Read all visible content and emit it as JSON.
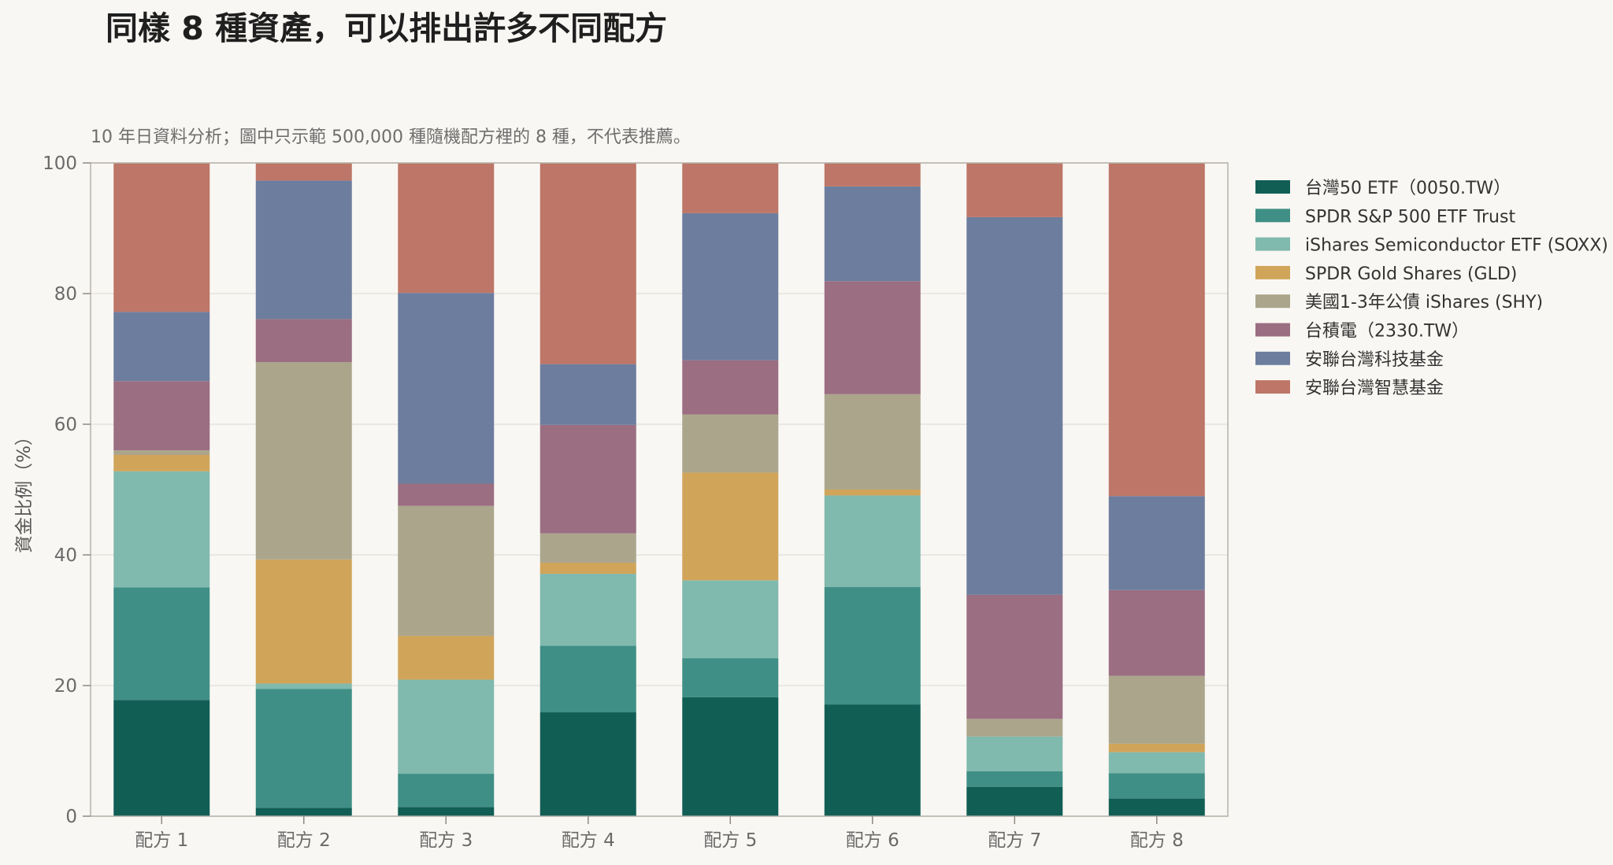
{
  "chart_data": {
    "type": "bar",
    "stacked": true,
    "title": "同樣 8 種資產，可以排出許多不同配方",
    "subtitle": "10 年日資料分析；圖中只示範 500,000 種隨機配方裡的 8 種，不代表推薦。",
    "xlabel": "",
    "ylabel": "資金比例（%）",
    "ylim": [
      0,
      100
    ],
    "yticks": [
      0,
      20,
      40,
      60,
      80,
      100
    ],
    "grid": true,
    "legend_position": "right",
    "categories": [
      "配方 1",
      "配方 2",
      "配方 3",
      "配方 4",
      "配方 5",
      "配方 6",
      "配方 7",
      "配方 8"
    ],
    "series": [
      {
        "name": "台灣50 ETF（0050.TW）",
        "color": "#115e55",
        "values": [
          17.8,
          1.3,
          1.4,
          15.9,
          18.2,
          17.1,
          4.5,
          2.7
        ]
      },
      {
        "name": "SPDR S&P 500 ETF Trust",
        "color": "#3f8f86",
        "values": [
          17.2,
          18.2,
          5.1,
          10.2,
          6.0,
          18.0,
          2.4,
          3.9
        ]
      },
      {
        "name": "iShares Semiconductor ETF (SOXX)",
        "color": "#80b9ae",
        "values": [
          17.8,
          0.8,
          14.4,
          11.0,
          11.9,
          14.0,
          5.3,
          3.2
        ]
      },
      {
        "name": "SPDR Gold Shares (GLD)",
        "color": "#d0a55a",
        "values": [
          2.5,
          19.0,
          6.7,
          1.7,
          16.5,
          0.9,
          0.0,
          1.3
        ]
      },
      {
        "name": "美國1-3年公債 iShares (SHY)",
        "color": "#aba58c",
        "values": [
          0.7,
          30.2,
          19.9,
          4.5,
          8.9,
          14.6,
          2.7,
          10.4
        ]
      },
      {
        "name": "台積電（2330.TW）",
        "color": "#9b6e82",
        "values": [
          10.6,
          6.6,
          3.4,
          16.6,
          8.3,
          17.3,
          19.0,
          13.1
        ]
      },
      {
        "name": "安聯台灣科技基金",
        "color": "#6d7d9e",
        "values": [
          10.6,
          21.2,
          29.2,
          9.3,
          22.5,
          14.5,
          57.8,
          14.4
        ]
      },
      {
        "name": "安聯台灣智慧基金",
        "color": "#bd7667",
        "values": [
          22.8,
          2.7,
          19.9,
          30.8,
          7.7,
          3.6,
          8.3,
          51.0
        ]
      }
    ]
  }
}
